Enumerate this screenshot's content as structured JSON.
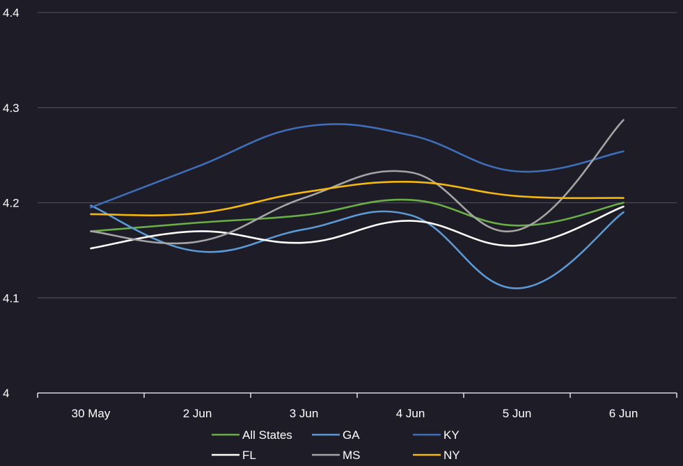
{
  "chart_data": {
    "type": "line",
    "categories": [
      "30 May",
      "2 Jun",
      "3 Jun",
      "4 Jun",
      "5 Jun",
      "6 Jun"
    ],
    "ylim": [
      4,
      4.4
    ],
    "yticks": [
      "4",
      "4.1",
      "4.2",
      "4.3",
      "4.4"
    ],
    "grid": true,
    "legend_position": "bottom",
    "series": [
      {
        "name": "All States",
        "color": "#6aaf45",
        "values": [
          4.17,
          4.179,
          4.187,
          4.203,
          4.176,
          4.2
        ]
      },
      {
        "name": "GA",
        "color": "#5b9ad5",
        "values": [
          4.197,
          4.149,
          4.172,
          4.187,
          4.11,
          4.19
        ]
      },
      {
        "name": "KY",
        "color": "#3f6eb8",
        "values": [
          4.195,
          4.238,
          4.28,
          4.271,
          4.233,
          4.254
        ]
      },
      {
        "name": "FL",
        "color": "#ffffff",
        "values": [
          4.152,
          4.17,
          4.158,
          4.181,
          4.155,
          4.196
        ]
      },
      {
        "name": "MS",
        "color": "#a5a5a5",
        "values": [
          4.17,
          4.159,
          4.205,
          4.232,
          4.171,
          4.287
        ]
      },
      {
        "name": "NY",
        "color": "#f5b80f",
        "values": [
          4.188,
          4.189,
          4.211,
          4.222,
          4.207,
          4.205
        ]
      }
    ]
  }
}
